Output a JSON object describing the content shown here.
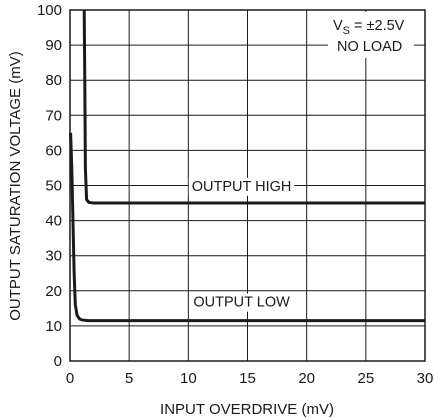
{
  "chart_data": {
    "type": "line",
    "xlabel": "INPUT OVERDRIVE (mV)",
    "ylabel": "OUTPUT SATURATION VOLTAGE (mV)",
    "xlim": [
      0,
      30
    ],
    "ylim": [
      0,
      100
    ],
    "x_ticks": [
      "0",
      "5",
      "10",
      "15",
      "20",
      "25",
      "30"
    ],
    "y_ticks": [
      "0",
      "10",
      "20",
      "30",
      "40",
      "50",
      "60",
      "70",
      "80",
      "90",
      "100"
    ],
    "grid": true,
    "series": [
      {
        "name": "OUTPUT HIGH",
        "x": [
          1.2,
          1.25,
          1.3,
          1.4,
          1.6,
          2,
          3,
          5,
          10,
          15,
          20,
          25,
          30
        ],
        "y": [
          100,
          80,
          55,
          46,
          45.2,
          45,
          45,
          45,
          45,
          45,
          45,
          45,
          45
        ]
      },
      {
        "name": "OUTPUT LOW",
        "x": [
          0.05,
          0.15,
          0.25,
          0.35,
          0.45,
          0.6,
          0.8,
          1.0,
          1.5,
          2,
          3,
          5,
          10,
          15,
          20,
          25,
          30
        ],
        "y": [
          65,
          55,
          40,
          25,
          16,
          13,
          12,
          11.7,
          11.5,
          11.5,
          11.5,
          11.5,
          11.5,
          11.5,
          11.5,
          11.5,
          11.5
        ]
      }
    ],
    "annotations": [
      {
        "text": "OUTPUT HIGH",
        "x": 14.5,
        "y": 48.5
      },
      {
        "text": "OUTPUT LOW",
        "x": 14.5,
        "y": 15.5
      }
    ],
    "conditions": {
      "line1_main": "V",
      "line1_sub": "S",
      "line1_rest": " = ±2.5V",
      "line2": "NO LOAD"
    }
  }
}
